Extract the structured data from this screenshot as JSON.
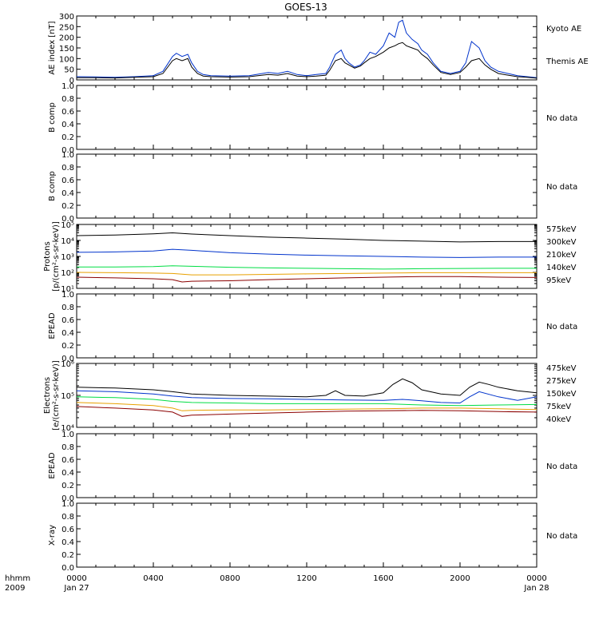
{
  "figure": {
    "title": "GOES-13",
    "colors": {
      "black": "#000000",
      "blue": "#0033cc",
      "dark_red": "#8b0000",
      "orange": "#e8a000",
      "green": "#00dd44"
    }
  },
  "x_axis": {
    "label_line1": "hhmm",
    "label_line2": "2009",
    "ticks": [
      {
        "label": "0000",
        "sublabel": "Jan 27",
        "hour": 0
      },
      {
        "label": "0400",
        "sublabel": "",
        "hour": 4
      },
      {
        "label": "0800",
        "sublabel": "",
        "hour": 8
      },
      {
        "label": "1200",
        "sublabel": "",
        "hour": 12
      },
      {
        "label": "1600",
        "sublabel": "",
        "hour": 16
      },
      {
        "label": "2000",
        "sublabel": "",
        "hour": 20
      },
      {
        "label": "0000",
        "sublabel": "Jan 28",
        "hour": 24
      }
    ]
  },
  "chart_data": [
    {
      "type": "line",
      "ylabel": "AE index [nT]",
      "ylim": [
        0,
        300
      ],
      "yticks": [
        "0",
        "50",
        "100",
        "150",
        "200",
        "250",
        "300"
      ],
      "x_units": "hours since 0000 Jan 27",
      "series": [
        {
          "name": "Kyoto AE",
          "color": "#0033cc",
          "x": [
            0,
            1,
            2,
            3,
            4,
            4.5,
            5,
            5.2,
            5.5,
            5.8,
            6,
            6.3,
            6.6,
            7,
            8,
            9,
            10,
            10.5,
            11,
            11.5,
            12,
            12.5,
            13,
            13.2,
            13.5,
            13.8,
            14,
            14.2,
            14.5,
            14.8,
            15,
            15.3,
            15.6,
            16,
            16.3,
            16.6,
            16.8,
            17,
            17.2,
            17.5,
            17.8,
            18,
            18.3,
            18.6,
            19,
            19.5,
            20,
            20.3,
            20.6,
            21,
            21.3,
            21.6,
            22,
            22.5,
            23,
            23.5,
            24
          ],
          "y": [
            15,
            14,
            12,
            15,
            20,
            40,
            110,
            125,
            110,
            120,
            80,
            40,
            25,
            20,
            18,
            20,
            35,
            30,
            40,
            25,
            20,
            25,
            30,
            60,
            120,
            140,
            100,
            80,
            60,
            70,
            90,
            130,
            120,
            160,
            220,
            200,
            270,
            280,
            220,
            190,
            170,
            140,
            120,
            80,
            40,
            30,
            40,
            80,
            180,
            150,
            90,
            60,
            40,
            30,
            20,
            15,
            10
          ]
        },
        {
          "name": "Themis AE",
          "color": "#000000",
          "x": [
            0,
            1,
            2,
            3,
            4,
            4.5,
            5,
            5.2,
            5.5,
            5.8,
            6,
            6.3,
            6.6,
            7,
            8,
            9,
            10,
            10.5,
            11,
            11.5,
            12,
            12.5,
            13,
            13.2,
            13.5,
            13.8,
            14,
            14.2,
            14.5,
            14.8,
            15,
            15.3,
            15.6,
            16,
            16.3,
            16.6,
            16.8,
            17,
            17.2,
            17.5,
            17.8,
            18,
            18.3,
            18.6,
            19,
            19.5,
            20,
            20.3,
            20.6,
            21,
            21.3,
            21.6,
            22,
            22.5,
            23,
            23.5,
            24
          ],
          "y": [
            10,
            10,
            9,
            12,
            15,
            30,
            90,
            100,
            90,
            100,
            60,
            30,
            18,
            15,
            13,
            15,
            25,
            22,
            30,
            18,
            15,
            18,
            22,
            45,
            90,
            100,
            80,
            70,
            55,
            65,
            80,
            100,
            110,
            130,
            150,
            160,
            170,
            175,
            160,
            150,
            140,
            120,
            100,
            70,
            35,
            25,
            35,
            60,
            90,
            100,
            70,
            50,
            30,
            22,
            15,
            12,
            8
          ]
        }
      ],
      "legend": [
        {
          "text": "Kyoto AE",
          "color": "#0033cc"
        },
        {
          "text": "Themis AE",
          "color": "#000000"
        }
      ]
    },
    {
      "type": "line",
      "ylabel": "B comp",
      "ylim": [
        0,
        1
      ],
      "yticks": [
        "0.0",
        "0.2",
        "0.4",
        "0.6",
        "0.8",
        "1.0"
      ],
      "series": [],
      "legend": [
        {
          "text": "No data",
          "color": "#000000"
        }
      ]
    },
    {
      "type": "line",
      "ylabel": "B comp",
      "ylim": [
        0,
        1
      ],
      "yticks": [
        "0.0",
        "0.2",
        "0.4",
        "0.6",
        "0.8",
        "1.0"
      ],
      "series": [],
      "legend": [
        {
          "text": "No data",
          "color": "#000000"
        }
      ]
    },
    {
      "type": "line",
      "scale": "log",
      "ylabel_line1": "Protons",
      "ylabel_line2": "[p/(cm²-s-sr-keV)]",
      "ylim": [
        10,
        100000
      ],
      "yticks": [
        "10¹",
        "10²",
        "10³",
        "10⁴",
        "10⁵"
      ],
      "x_units": "hours since 0000 Jan 27",
      "series": [
        {
          "name": "95keV",
          "color": "#000000",
          "x": [
            0,
            2,
            4,
            5,
            6,
            8,
            10,
            12,
            14,
            16,
            18,
            20,
            22,
            24
          ],
          "y": [
            20000,
            22000,
            26000,
            30000,
            25000,
            20000,
            16000,
            14000,
            12000,
            10000,
            9000,
            8000,
            8500,
            8500
          ]
        },
        {
          "name": "140keV",
          "color": "#0033cc",
          "x": [
            0,
            2,
            4,
            5,
            6,
            8,
            10,
            12,
            14,
            16,
            18,
            20,
            22,
            24
          ],
          "y": [
            1800,
            1900,
            2200,
            2800,
            2400,
            1700,
            1400,
            1200,
            1100,
            1000,
            900,
            850,
            900,
            900
          ]
        },
        {
          "name": "210keV",
          "color": "#00dd44",
          "x": [
            0,
            2,
            4,
            5,
            6,
            8,
            10,
            12,
            14,
            16,
            18,
            20,
            22,
            24
          ],
          "y": [
            220,
            220,
            230,
            260,
            240,
            210,
            190,
            180,
            170,
            160,
            170,
            175,
            180,
            180
          ]
        },
        {
          "name": "300keV",
          "color": "#e8a000",
          "x": [
            0,
            2,
            4,
            5,
            6,
            8,
            10,
            12,
            14,
            16,
            18,
            20,
            22,
            24
          ],
          "y": [
            100,
            95,
            90,
            85,
            70,
            70,
            75,
            80,
            85,
            90,
            95,
            95,
            95,
            95
          ]
        },
        {
          "name": "575keV",
          "color": "#8b0000",
          "x": [
            0,
            2,
            4,
            5,
            5.5,
            6,
            8,
            10,
            12,
            14,
            16,
            18,
            20,
            22,
            24
          ],
          "y": [
            50,
            45,
            40,
            35,
            25,
            28,
            30,
            35,
            40,
            45,
            50,
            55,
            55,
            50,
            48
          ]
        }
      ],
      "legend": [
        {
          "text": "575keV",
          "color": "#8b0000"
        },
        {
          "text": "300keV",
          "color": "#e8a000"
        },
        {
          "text": "210keV",
          "color": "#00dd44"
        },
        {
          "text": "140keV",
          "color": "#0033cc"
        },
        {
          "text": "95keV",
          "color": "#000000"
        }
      ]
    },
    {
      "type": "line",
      "ylabel": "EPEAD",
      "ylim": [
        0,
        1
      ],
      "yticks": [
        "0.0",
        "0.2",
        "0.4",
        "0.6",
        "0.8",
        "1.0"
      ],
      "series": [],
      "legend": [
        {
          "text": "No data",
          "color": "#000000"
        }
      ]
    },
    {
      "type": "line",
      "scale": "log",
      "ylabel_line1": "Electrons",
      "ylabel_line2": "[e/(cm²-s-sr-keV)]",
      "ylim": [
        10000,
        1000000
      ],
      "yticks": [
        "10⁴",
        "10⁵",
        "10⁶"
      ],
      "x_units": "hours since 0000 Jan 27",
      "series": [
        {
          "name": "40keV",
          "color": "#000000",
          "x": [
            0,
            2,
            4,
            5,
            6,
            8,
            10,
            12,
            13,
            13.5,
            14,
            15,
            16,
            16.5,
            17,
            17.5,
            18,
            19,
            20,
            20.5,
            21,
            21.5,
            22,
            23,
            24
          ],
          "y": [
            180000,
            170000,
            150000,
            130000,
            110000,
            100000,
            95000,
            90000,
            100000,
            140000,
            100000,
            95000,
            120000,
            220000,
            330000,
            250000,
            150000,
            110000,
            100000,
            180000,
            260000,
            220000,
            180000,
            140000,
            120000
          ]
        },
        {
          "name": "75keV",
          "color": "#0033cc",
          "x": [
            0,
            2,
            4,
            5,
            6,
            8,
            10,
            12,
            14,
            16,
            17,
            18,
            19,
            20,
            20.5,
            21,
            22,
            23,
            24
          ],
          "y": [
            140000,
            130000,
            110000,
            95000,
            85000,
            80000,
            78000,
            75000,
            72000,
            70000,
            75000,
            68000,
            60000,
            58000,
            90000,
            130000,
            90000,
            70000,
            90000
          ]
        },
        {
          "name": "150keV",
          "color": "#00dd44",
          "x": [
            0,
            2,
            4,
            5,
            6,
            8,
            10,
            12,
            14,
            16,
            18,
            20,
            22,
            24
          ],
          "y": [
            90000,
            85000,
            75000,
            65000,
            60000,
            58000,
            55000,
            55000,
            55000,
            55000,
            50000,
            48000,
            50000,
            52000
          ]
        },
        {
          "name": "275keV",
          "color": "#e8a000",
          "x": [
            0,
            2,
            4,
            5,
            5.5,
            6,
            8,
            10,
            12,
            14,
            16,
            18,
            20,
            22,
            24
          ],
          "y": [
            60000,
            55000,
            48000,
            40000,
            33000,
            34000,
            35000,
            35000,
            36000,
            37000,
            38000,
            40000,
            40000,
            38000,
            36000
          ]
        },
        {
          "name": "475keV",
          "color": "#8b0000",
          "x": [
            0,
            2,
            4,
            5,
            5.5,
            6,
            8,
            10,
            12,
            14,
            16,
            18,
            20,
            22,
            24
          ],
          "y": [
            45000,
            40000,
            35000,
            30000,
            22000,
            24000,
            26000,
            28000,
            30000,
            32000,
            33000,
            34000,
            33000,
            31000,
            30000
          ]
        }
      ],
      "legend": [
        {
          "text": "475keV",
          "color": "#8b0000"
        },
        {
          "text": "275keV",
          "color": "#e8a000"
        },
        {
          "text": "150keV",
          "color": "#00dd44"
        },
        {
          "text": "75keV",
          "color": "#0033cc"
        },
        {
          "text": "40keV",
          "color": "#000000"
        }
      ]
    },
    {
      "type": "line",
      "ylabel": "EPEAD",
      "ylim": [
        0,
        1
      ],
      "yticks": [
        "0.0",
        "0.2",
        "0.4",
        "0.6",
        "0.8",
        "1.0"
      ],
      "series": [],
      "legend": [
        {
          "text": "No data",
          "color": "#000000"
        }
      ]
    },
    {
      "type": "line",
      "ylabel": "X-ray",
      "ylim": [
        0,
        1
      ],
      "yticks": [
        "0.0",
        "0.2",
        "0.4",
        "0.6",
        "0.8",
        "1.0"
      ],
      "series": [],
      "legend": [
        {
          "text": "No data",
          "color": "#000000"
        }
      ]
    }
  ]
}
